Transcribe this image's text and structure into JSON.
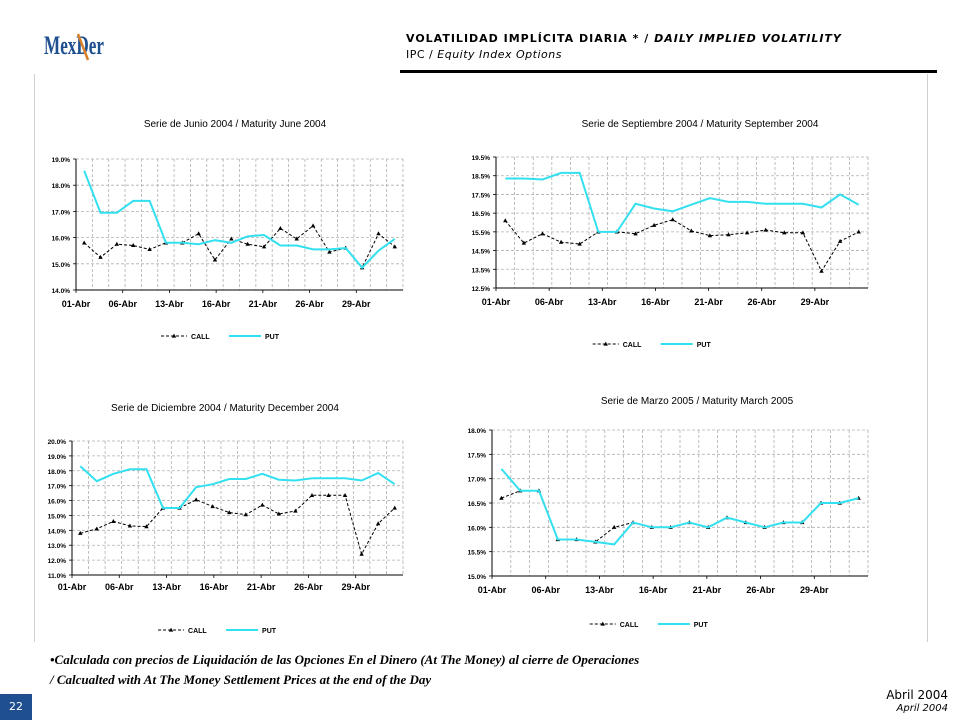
{
  "header": {
    "logo_text": "MexDer",
    "title_es": "VOLATILIDAD IMPLÍCITA DIARIA * / ",
    "title_en": "DAILY IMPLIED VOLATILITY",
    "subtitle_es": "IPC / ",
    "subtitle_en": "Equity Index Options"
  },
  "footnote": {
    "line1": "•Calculada con precios de Liquidación de las Opciones En el Dinero (At The Money) al cierre de Operaciones",
    "line2": " / Calcualted with At The Money Settlement Prices at the end of the Day"
  },
  "footer": {
    "page_number": "22",
    "date_es": "Abril 2004",
    "date_en": "April 2004"
  },
  "colors": {
    "call": "#000000",
    "put": "#33e0f0",
    "grid": "#b0b0b0",
    "logo": "#1f4f8f",
    "logo_x": "#d9822b"
  },
  "chart_data": [
    {
      "type": "line",
      "title": "Serie de Junio 2004 / Maturity June 2004",
      "x_ticks": [
        "01-Abr",
        "06-Abr",
        "13-Abr",
        "16-Abr",
        "21-Abr",
        "26-Abr",
        "29-Abr"
      ],
      "y_ticks": [
        "14.0%",
        "15.0%",
        "16.0%",
        "17.0%",
        "18.0%",
        "19.0%"
      ],
      "ylim": [
        14.0,
        19.0
      ],
      "series": [
        {
          "name": "CALL",
          "values": [
            15.8,
            15.25,
            15.75,
            15.7,
            15.55,
            15.8,
            15.8,
            16.15,
            15.15,
            15.95,
            15.75,
            15.65,
            16.35,
            15.95,
            16.45,
            15.45,
            15.6,
            14.85,
            16.15,
            15.65
          ]
        },
        {
          "name": "PUT",
          "values": [
            18.55,
            16.95,
            16.95,
            17.4,
            17.4,
            15.8,
            15.8,
            15.75,
            15.9,
            15.8,
            16.05,
            16.1,
            15.7,
            15.7,
            15.55,
            15.55,
            15.6,
            14.85,
            15.5,
            15.95
          ]
        }
      ],
      "legend": [
        "CALL",
        "PUT"
      ]
    },
    {
      "type": "line",
      "title": "Serie de Septiembre 2004 / Maturity September 2004",
      "x_ticks": [
        "01-Abr",
        "06-Abr",
        "13-Abr",
        "16-Abr",
        "21-Abr",
        "26-Abr",
        "29-Abr"
      ],
      "y_ticks": [
        "12.5%",
        "13.5%",
        "14.5%",
        "15.5%",
        "16.5%",
        "17.5%",
        "18.5%",
        "19.5%"
      ],
      "ylim": [
        12.5,
        19.5
      ],
      "series": [
        {
          "name": "CALL",
          "values": [
            16.1,
            14.9,
            15.4,
            14.95,
            14.85,
            15.5,
            15.5,
            15.4,
            15.85,
            16.15,
            15.55,
            15.3,
            15.35,
            15.45,
            15.6,
            15.45,
            15.45,
            13.4,
            15.0,
            15.5
          ]
        },
        {
          "name": "PUT",
          "values": [
            18.35,
            18.35,
            18.3,
            18.65,
            18.65,
            15.5,
            15.5,
            17.0,
            16.75,
            16.6,
            16.95,
            17.3,
            17.1,
            17.1,
            17.0,
            17.0,
            17.0,
            16.8,
            17.5,
            16.95
          ]
        }
      ],
      "legend": [
        "CALL",
        "PUT"
      ]
    },
    {
      "type": "line",
      "title": "Serie de Diciembre 2004 / Maturity December 2004",
      "x_ticks": [
        "01-Abr",
        "06-Abr",
        "13-Abr",
        "16-Abr",
        "21-Abr",
        "26-Abr",
        "29-Abr"
      ],
      "y_ticks": [
        "11.0%",
        "12.0%",
        "13.0%",
        "14.0%",
        "15.0%",
        "16.0%",
        "17.0%",
        "18.0%",
        "19.0%",
        "20.0%"
      ],
      "ylim": [
        11.0,
        20.0
      ],
      "series": [
        {
          "name": "CALL",
          "values": [
            13.8,
            14.1,
            14.6,
            14.3,
            14.25,
            15.5,
            15.5,
            16.05,
            15.6,
            15.2,
            15.05,
            15.7,
            15.1,
            15.3,
            16.35,
            16.35,
            16.35,
            12.4,
            14.45,
            15.5
          ]
        },
        {
          "name": "PUT",
          "values": [
            18.3,
            17.3,
            17.8,
            18.1,
            18.1,
            15.5,
            15.5,
            16.9,
            17.1,
            17.45,
            17.45,
            17.8,
            17.4,
            17.35,
            17.5,
            17.5,
            17.5,
            17.35,
            17.85,
            17.1
          ]
        }
      ],
      "legend": [
        "CALL",
        "PUT"
      ]
    },
    {
      "type": "line",
      "title": "Serie de Marzo 2005 / Maturity March 2005",
      "x_ticks": [
        "01-Abr",
        "06-Abr",
        "13-Abr",
        "16-Abr",
        "21-Abr",
        "26-Abr",
        "29-Abr"
      ],
      "y_ticks": [
        "15.0%",
        "15.5%",
        "16.0%",
        "16.5%",
        "17.0%",
        "17.5%",
        "18.0%"
      ],
      "ylim": [
        15.0,
        18.0
      ],
      "series": [
        {
          "name": "CALL",
          "values": [
            16.6,
            16.75,
            16.75,
            15.75,
            15.75,
            15.7,
            16.0,
            16.1,
            16.0,
            16.0,
            16.1,
            16.0,
            16.2,
            16.1,
            16.0,
            16.1,
            16.1,
            16.5,
            16.5,
            16.6
          ]
        },
        {
          "name": "PUT",
          "values": [
            17.2,
            16.75,
            16.75,
            15.75,
            15.75,
            15.7,
            15.65,
            16.1,
            16.0,
            16.0,
            16.1,
            16.0,
            16.2,
            16.1,
            16.0,
            16.1,
            16.1,
            16.5,
            16.5,
            16.6
          ]
        }
      ],
      "legend": [
        "CALL",
        "PUT"
      ]
    }
  ]
}
